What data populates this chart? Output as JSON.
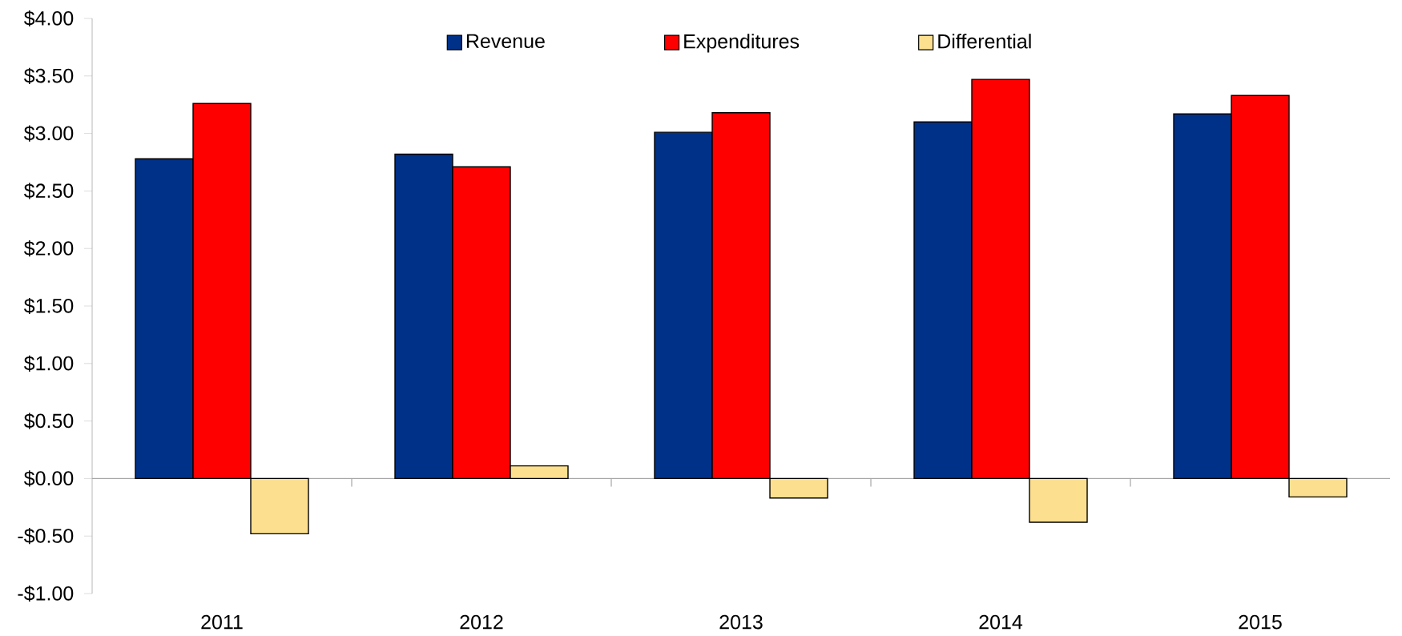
{
  "chart_data": {
    "type": "bar",
    "categories": [
      "2011",
      "2012",
      "2013",
      "2014",
      "2015"
    ],
    "series": [
      {
        "name": "Revenue",
        "color": "#003189",
        "values": [
          2.78,
          2.82,
          3.01,
          3.1,
          3.17
        ]
      },
      {
        "name": "Expenditures",
        "color": "#fe0000",
        "values": [
          3.26,
          2.71,
          3.18,
          3.47,
          3.33
        ]
      },
      {
        "name": "Differential",
        "color": "#fde08f",
        "values": [
          -0.48,
          0.11,
          -0.17,
          -0.38,
          -0.16
        ]
      }
    ],
    "ylim": [
      -1,
      4
    ],
    "yticks": [
      {
        "value": -1,
        "label": "-$1.00"
      },
      {
        "value": -0.5,
        "label": "-$0.50"
      },
      {
        "value": 0,
        "label": "$0.00"
      },
      {
        "value": 0.5,
        "label": "$0.50"
      },
      {
        "value": 1,
        "label": "$1.00"
      },
      {
        "value": 1.5,
        "label": "$1.50"
      },
      {
        "value": 2,
        "label": "$2.00"
      },
      {
        "value": 2.5,
        "label": "$2.50"
      },
      {
        "value": 3,
        "label": "$3.00"
      },
      {
        "value": 3.5,
        "label": "$3.50"
      },
      {
        "value": 4,
        "label": "$4.00"
      }
    ],
    "legend": "top"
  }
}
